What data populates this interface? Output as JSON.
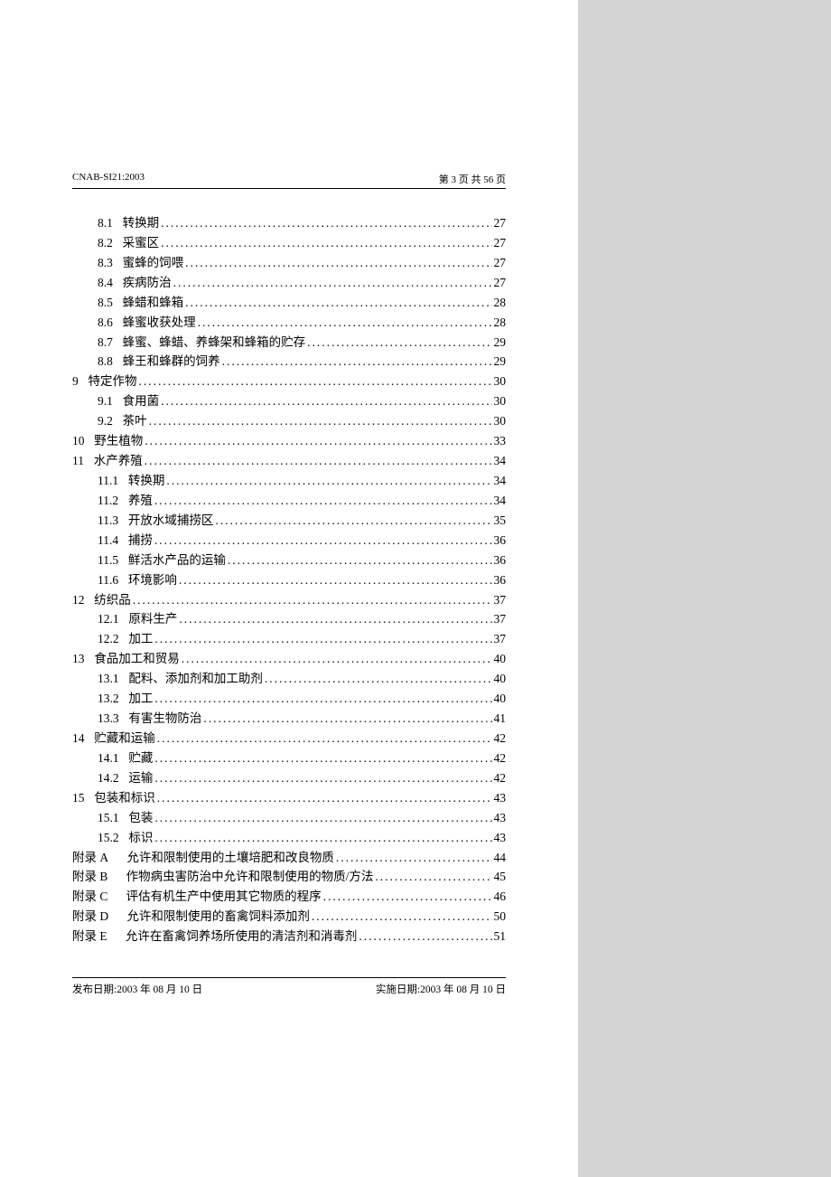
{
  "header": {
    "doc_id": "CNAB-SI21:2003",
    "page_info": "第 3 页   共 56 页"
  },
  "footer": {
    "publish": "发布日期:2003 年 08 月 10 日",
    "effective": "实施日期:2003 年 08 月 10 日"
  },
  "toc": [
    {
      "level": 1,
      "num": "8.1",
      "title": "转换期",
      "page": "27"
    },
    {
      "level": 1,
      "num": "8.2",
      "title": "采蜜区",
      "page": "27"
    },
    {
      "level": 1,
      "num": "8.3",
      "title": "蜜蜂的饲喂",
      "page": "27"
    },
    {
      "level": 1,
      "num": "8.4",
      "title": "疾病防治",
      "page": "27"
    },
    {
      "level": 1,
      "num": "8.5",
      "title": "蜂蜡和蜂箱",
      "page": "28"
    },
    {
      "level": 1,
      "num": "8.6",
      "title": "蜂蜜收获处理",
      "page": "28"
    },
    {
      "level": 1,
      "num": "8.7",
      "title": "蜂蜜、蜂蜡、养蜂架和蜂箱的贮存",
      "page": "29"
    },
    {
      "level": 1,
      "num": "8.8",
      "title": "蜂王和蜂群的饲养",
      "page": "29"
    },
    {
      "level": 0,
      "num": "9",
      "title": "特定作物",
      "page": "30"
    },
    {
      "level": 1,
      "num": "9.1",
      "title": "食用菌",
      "page": "30"
    },
    {
      "level": 1,
      "num": "9.2",
      "title": "茶叶",
      "page": "30"
    },
    {
      "level": 0,
      "num": "10",
      "title": "野生植物",
      "page": "33"
    },
    {
      "level": 0,
      "num": "11",
      "title": "水产养殖",
      "page": "34"
    },
    {
      "level": 1,
      "num": "11.1",
      "title": "转换期",
      "page": "34"
    },
    {
      "level": 1,
      "num": "11.2",
      "title": "养殖",
      "page": "34"
    },
    {
      "level": 1,
      "num": "11.3",
      "title": "开放水域捕捞区",
      "page": "35"
    },
    {
      "level": 1,
      "num": "11.4",
      "title": "捕捞",
      "page": "36"
    },
    {
      "level": 1,
      "num": "11.5",
      "title": "鲜活水产品的运输",
      "page": "36"
    },
    {
      "level": 1,
      "num": "11.6",
      "title": "环境影响",
      "page": "36"
    },
    {
      "level": 0,
      "num": "12",
      "title": "纺织品",
      "page": "37"
    },
    {
      "level": 1,
      "num": "12.1",
      "title": "原料生产",
      "page": "37"
    },
    {
      "level": 1,
      "num": "12.2",
      "title": "加工",
      "page": "37"
    },
    {
      "level": 0,
      "num": "13",
      "title": "食品加工和贸易",
      "page": "40"
    },
    {
      "level": 1,
      "num": "13.1",
      "title": "配料、添加剂和加工助剂",
      "page": "40"
    },
    {
      "level": 1,
      "num": "13.2",
      "title": "加工",
      "page": "40"
    },
    {
      "level": 1,
      "num": "13.3",
      "title": "有害生物防治",
      "page": "41"
    },
    {
      "level": 0,
      "num": "14",
      "title": "贮藏和运输",
      "page": "42"
    },
    {
      "level": 1,
      "num": "14.1",
      "title": "贮藏",
      "page": "42"
    },
    {
      "level": 1,
      "num": "14.2",
      "title": "运输",
      "page": "42"
    },
    {
      "level": 0,
      "num": "15",
      "title": "包装和标识",
      "page": "43"
    },
    {
      "level": 1,
      "num": "15.1",
      "title": "包装",
      "page": "43"
    },
    {
      "level": 1,
      "num": "15.2",
      "title": "标识",
      "page": "43"
    },
    {
      "level": 0,
      "appendix": true,
      "num": "附录 A",
      "title": "允许和限制使用的土壤培肥和改良物质",
      "page": "44"
    },
    {
      "level": 0,
      "appendix": true,
      "num": "附录 B",
      "title": "作物病虫害防治中允许和限制使用的物质/方法",
      "page": "45"
    },
    {
      "level": 0,
      "appendix": true,
      "num": "附录 C",
      "title": "评估有机生产中使用其它物质的程序",
      "page": "46"
    },
    {
      "level": 0,
      "appendix": true,
      "num": "附录 D",
      "title": "允许和限制使用的畜禽饲料添加剂",
      "page": "50"
    },
    {
      "level": 0,
      "appendix": true,
      "num": "附录 E",
      "title": "允许在畜禽饲养场所使用的清洁剂和消毒剂",
      "page": "51"
    }
  ]
}
